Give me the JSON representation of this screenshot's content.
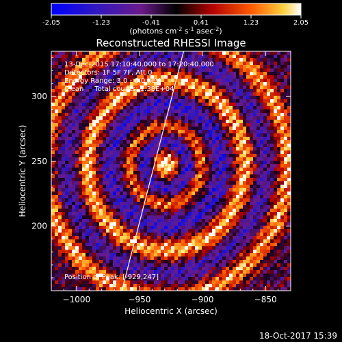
{
  "colorbar": {
    "ticks": [
      "-2.05",
      "-1.23",
      "-0.41",
      "0.41",
      "1.23",
      "2.05"
    ],
    "units_prefix": "(photons cm",
    "units_exp1": "-2",
    "units_mid": " s",
    "units_exp2": "-1",
    "units_mid2": " asec",
    "units_exp3": "-2",
    "units_suffix": ")",
    "range": [
      -2.05,
      2.05
    ],
    "colormap": [
      "#0000ff",
      "#2020b0",
      "#601080",
      "#000000",
      "#c00000",
      "#ff6000",
      "#ffe060",
      "#ffffff"
    ]
  },
  "chart_data": {
    "type": "heatmap",
    "title": "Reconstructed RHESSI Image",
    "xlabel": "Heliocentric X (arcsec)",
    "ylabel": "Heliocentric Y (arcsec)",
    "xlim": [
      -1020,
      -830
    ],
    "ylim": [
      150,
      335
    ],
    "xticks": [
      -1000,
      -950,
      -900,
      -850
    ],
    "xtick_labels": [
      "−1000",
      "−950",
      "−900",
      "−850"
    ],
    "yticks": [
      200,
      250,
      300
    ],
    "ytick_labels": [
      "200",
      "250",
      "300"
    ],
    "peak": [
      -929,
      247
    ],
    "limb_line": [
      [
        -964,
        150
      ],
      [
        -915,
        335
      ]
    ],
    "annotations": {
      "time": "13-Dec-2015 17:10:40.000 to 17:20:40.000",
      "detectors": "Detectors: 1F 5F 7F, Att 0",
      "energy": "Energy Range: 3.0 - 6.0 keV",
      "clean": "Clean     Total counts: 1.38E+04",
      "peak": "Position of Peak: [-929,247]"
    }
  },
  "footer": {
    "timestamp": "18-Oct-2017 15:39"
  }
}
